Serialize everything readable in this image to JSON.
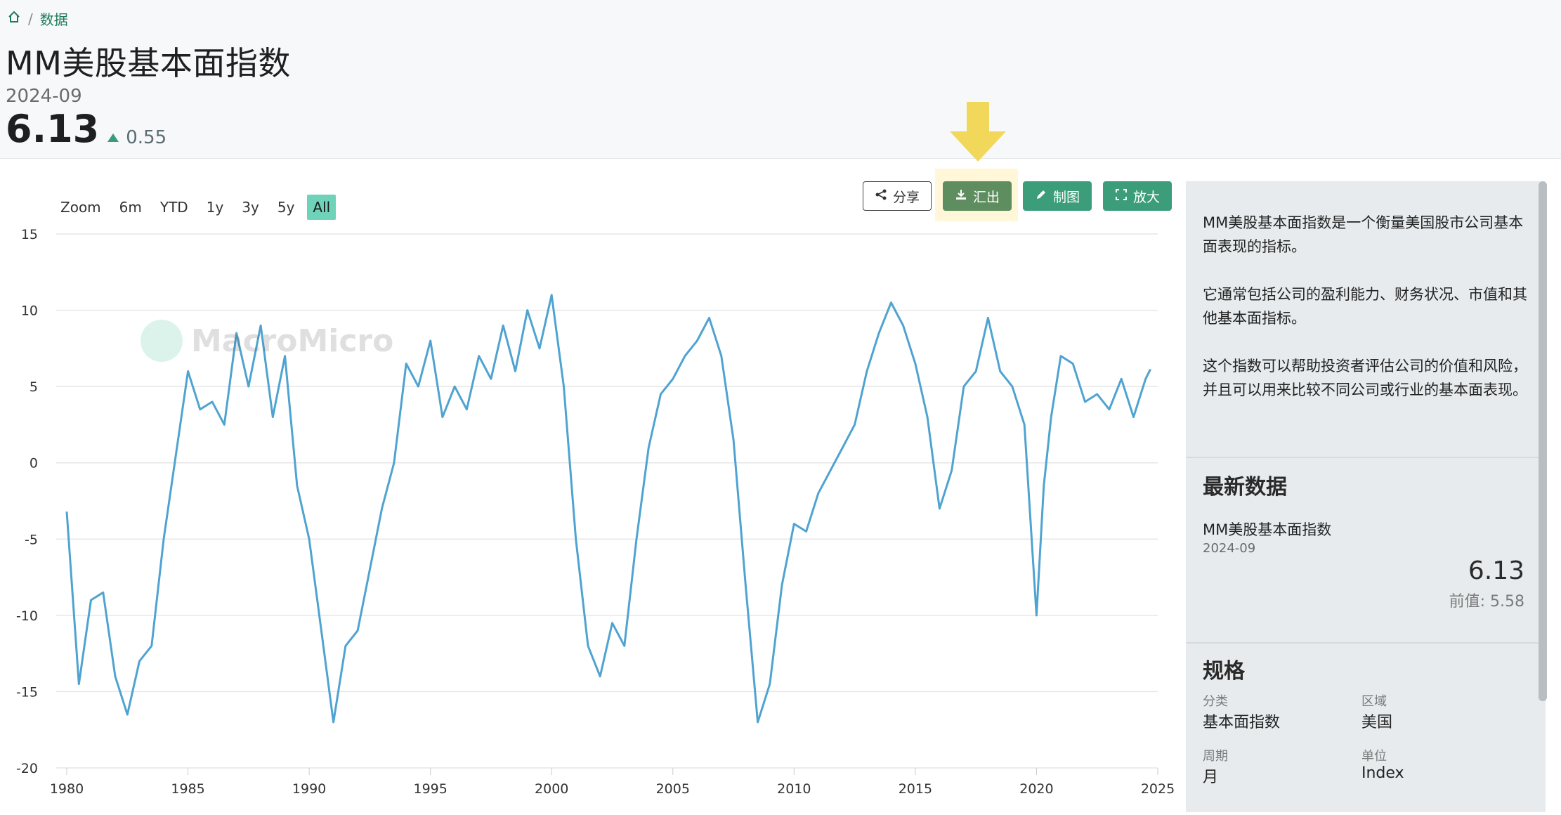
{
  "breadcrumb": {
    "home_icon": "home-icon",
    "separator": "/",
    "current": "数据"
  },
  "header": {
    "title": "MM美股基本面指数",
    "date": "2024-09",
    "value": "6.13",
    "change": "0.55"
  },
  "zoom": {
    "label": "Zoom",
    "options": [
      "6m",
      "YTD",
      "1y",
      "3y",
      "5y",
      "All"
    ],
    "active": "All"
  },
  "toolbar": {
    "share": "分享",
    "export": "汇出",
    "draw": "制图",
    "expand": "放大"
  },
  "watermark": {
    "text": "MacroMicro"
  },
  "chart_data": {
    "type": "line",
    "xlim": [
      1980,
      2025
    ],
    "ylim": [
      -20,
      15
    ],
    "xticks": [
      "1980",
      "1985",
      "1990",
      "1995",
      "2000",
      "2005",
      "2010",
      "2015",
      "2020",
      "2025"
    ],
    "yticks": [
      "15",
      "10",
      "5",
      "0",
      "-5",
      "-10",
      "-15",
      "-20"
    ],
    "line_color": "#4fa3d1",
    "grid": true,
    "series": [
      {
        "x": [
          1980.0,
          1980.5,
          1981.0,
          1981.5,
          1982.0,
          1982.5,
          1983.0,
          1983.5,
          1984.0,
          1984.5,
          1985.0,
          1985.5,
          1986.0,
          1986.5,
          1987.0,
          1987.5,
          1988.0,
          1988.5,
          1989.0,
          1989.5,
          1990.0,
          1990.5,
          1991.0,
          1991.5,
          1992.0,
          1992.5,
          1993.0,
          1993.5,
          1994.0,
          1994.5,
          1995.0,
          1995.5,
          1996.0,
          1996.5,
          1997.0,
          1997.5,
          1998.0,
          1998.5,
          1999.0,
          1999.5,
          2000.0,
          2000.5,
          2001.0,
          2001.5,
          2002.0,
          2002.5,
          2003.0,
          2003.5,
          2004.0,
          2004.5,
          2005.0,
          2005.5,
          2006.0,
          2006.5,
          2007.0,
          2007.5,
          2008.0,
          2008.5,
          2009.0,
          2009.5,
          2010.0,
          2010.5,
          2011.0,
          2011.5,
          2012.0,
          2012.5,
          2013.0,
          2013.5,
          2014.0,
          2014.5,
          2015.0,
          2015.5,
          2016.0,
          2016.5,
          2017.0,
          2017.5,
          2018.0,
          2018.5,
          2019.0,
          2019.5,
          2020.0,
          2020.3,
          2020.6,
          2021.0,
          2021.5,
          2022.0,
          2022.5,
          2023.0,
          2023.5,
          2024.0,
          2024.5,
          2024.7
        ],
        "y": [
          -3.2,
          -14.5,
          -9.0,
          -8.5,
          -14.0,
          -16.5,
          -13.0,
          -12.0,
          -5.0,
          0.5,
          6.0,
          3.5,
          4.0,
          2.5,
          8.5,
          5.0,
          9.0,
          3.0,
          7.0,
          -1.5,
          -5.0,
          -11.0,
          -17.0,
          -12.0,
          -11.0,
          -7.0,
          -3.0,
          0.0,
          6.5,
          5.0,
          8.0,
          3.0,
          5.0,
          3.5,
          7.0,
          5.5,
          9.0,
          6.0,
          10.0,
          7.5,
          11.0,
          5.0,
          -5.0,
          -12.0,
          -14.0,
          -10.5,
          -12.0,
          -5.0,
          1.0,
          4.5,
          5.5,
          7.0,
          8.0,
          9.5,
          7.0,
          1.5,
          -8.0,
          -17.0,
          -14.5,
          -8.0,
          -4.0,
          -4.5,
          -2.0,
          -0.5,
          1.0,
          2.5,
          6.0,
          8.5,
          10.5,
          9.0,
          6.5,
          3.0,
          -3.0,
          -0.5,
          5.0,
          6.0,
          9.5,
          6.0,
          5.0,
          2.5,
          -10.0,
          -1.5,
          3.0,
          7.0,
          6.5,
          4.0,
          4.5,
          3.5,
          5.5,
          3.0,
          5.5,
          6.13
        ]
      }
    ]
  },
  "sidebar": {
    "desc": [
      "MM美股基本面指数是一个衡量美国股市公司基本面表现的指标。",
      "它通常包括公司的盈利能力、财务状况、市值和其他基本面指标。",
      "这个指数可以帮助投资者评估公司的价值和风险，并且可以用来比较不同公司或行业的基本面表现。"
    ],
    "latest_title": "最新数据",
    "latest_name": "MM美股基本面指数",
    "latest_date": "2024-09",
    "latest_value": "6.13",
    "prev_label": "前值:",
    "prev_value": "5.58",
    "spec_title": "规格",
    "spec": {
      "category_label": "分类",
      "category": "基本面指数",
      "region_label": "区域",
      "region": "美国",
      "period_label": "周期",
      "period": "月",
      "unit_label": "单位",
      "unit": "Index"
    }
  }
}
